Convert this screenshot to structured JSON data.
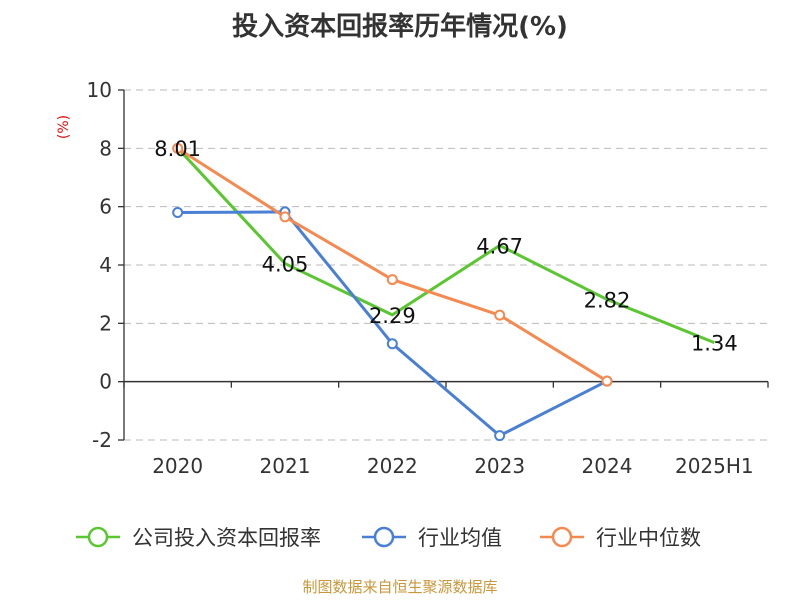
{
  "title": "投入资本回报率历年情况(%)",
  "source": "制图数据来自恒生聚源数据库",
  "chart_data": {
    "type": "line",
    "title": "投入资本回报率历年情况(%)",
    "ylabel": "(%)",
    "xlabel": "",
    "categories": [
      "2020",
      "2021",
      "2022",
      "2023",
      "2024",
      "2025H1"
    ],
    "ylim": [
      -2,
      10
    ],
    "yticks": [
      -2,
      0,
      2,
      4,
      6,
      8,
      10
    ],
    "grid": true,
    "legend_position": "bottom",
    "series": [
      {
        "name": "公司投入资本回报率",
        "color": "#5ac630",
        "values": [
          8.01,
          4.05,
          2.29,
          4.67,
          2.82,
          1.34
        ],
        "labels": [
          "8.01",
          "4.05",
          "2.29",
          "4.67",
          "2.82",
          "1.34"
        ],
        "show_markers": false
      },
      {
        "name": "行业均值",
        "color": "#4a7fd6",
        "values": [
          5.8,
          5.82,
          1.3,
          -1.85,
          0.02,
          null
        ],
        "show_markers": true
      },
      {
        "name": "行业中位数",
        "color": "#f5894f",
        "values": [
          8.0,
          5.65,
          3.5,
          2.28,
          0.02,
          null
        ],
        "show_markers": true
      }
    ]
  }
}
